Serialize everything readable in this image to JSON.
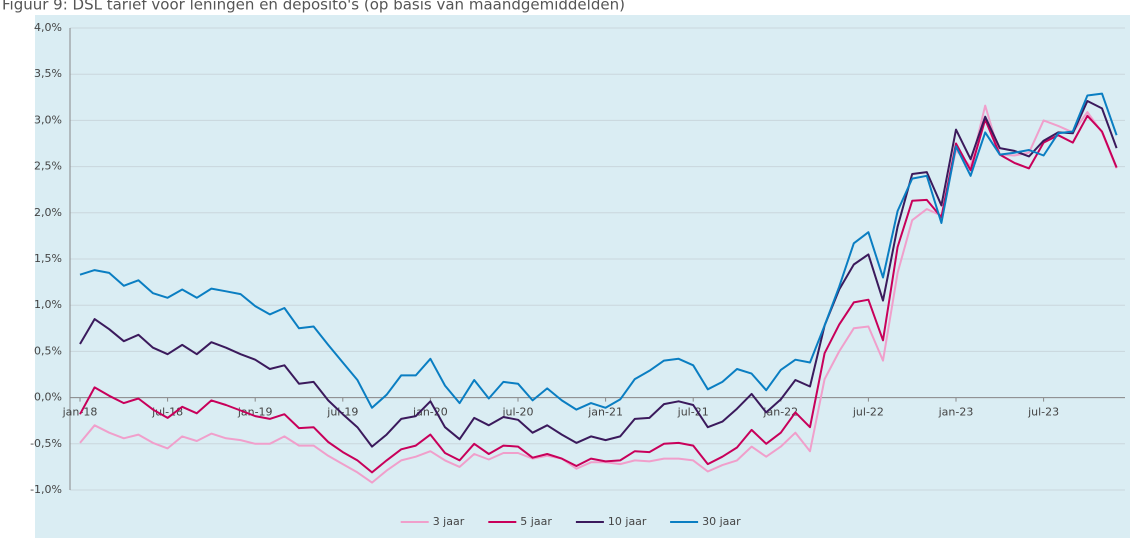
{
  "chart_data": {
    "type": "line",
    "title": "Figuur 9: DSL tarief voor leningen en deposito's (op basis van maandgemiddelden)",
    "categories": [
      "jan-18",
      null,
      null,
      null,
      null,
      null,
      "jul-18",
      null,
      null,
      null,
      null,
      null,
      "jan-19",
      null,
      null,
      null,
      null,
      null,
      "jul-19",
      null,
      null,
      null,
      null,
      null,
      "jan-20",
      null,
      null,
      null,
      null,
      null,
      "jul-20",
      null,
      null,
      null,
      null,
      null,
      "jan-21",
      null,
      null,
      null,
      null,
      null,
      "jul-21",
      null,
      null,
      null,
      null,
      null,
      "jan-22",
      null,
      null,
      null,
      null,
      null,
      "jul-22",
      null,
      null,
      null,
      null,
      null,
      "jan-23",
      null,
      null,
      null,
      null,
      null,
      "jul-23",
      null,
      null,
      null,
      null,
      null
    ],
    "series": [
      {
        "name": "3 jaar",
        "color": "#f09fcb",
        "values": [
          -0.49,
          -0.3,
          -0.38,
          -0.44,
          -0.4,
          -0.49,
          -0.55,
          -0.42,
          -0.47,
          -0.39,
          -0.44,
          -0.46,
          -0.5,
          -0.5,
          -0.42,
          -0.52,
          -0.52,
          -0.63,
          -0.72,
          -0.81,
          -0.92,
          -0.79,
          -0.68,
          -0.64,
          -0.58,
          -0.68,
          -0.75,
          -0.61,
          -0.67,
          -0.6,
          -0.6,
          -0.66,
          -0.63,
          -0.66,
          -0.77,
          -0.7,
          -0.7,
          -0.72,
          -0.68,
          -0.69,
          -0.66,
          -0.66,
          -0.68,
          -0.8,
          -0.73,
          -0.68,
          -0.53,
          -0.64,
          -0.53,
          -0.38,
          -0.58,
          0.2,
          0.5,
          0.75,
          0.77,
          0.4,
          1.35,
          1.92,
          2.04,
          1.97,
          2.68,
          2.5,
          3.16,
          2.63,
          2.62,
          2.65,
          3.0,
          2.94,
          2.87,
          3.09,
          2.87,
          2.48
        ]
      },
      {
        "name": "5 jaar",
        "color": "#c8005a",
        "values": [
          -0.18,
          0.11,
          0.02,
          -0.06,
          -0.01,
          -0.13,
          -0.22,
          -0.1,
          -0.17,
          -0.03,
          -0.08,
          -0.14,
          -0.2,
          -0.23,
          -0.18,
          -0.33,
          -0.32,
          -0.48,
          -0.59,
          -0.68,
          -0.81,
          -0.68,
          -0.56,
          -0.52,
          -0.4,
          -0.6,
          -0.68,
          -0.5,
          -0.61,
          -0.52,
          -0.53,
          -0.65,
          -0.61,
          -0.66,
          -0.74,
          -0.66,
          -0.69,
          -0.68,
          -0.58,
          -0.59,
          -0.5,
          -0.49,
          -0.52,
          -0.72,
          -0.64,
          -0.54,
          -0.35,
          -0.5,
          -0.38,
          -0.16,
          -0.32,
          0.48,
          0.79,
          1.03,
          1.06,
          0.62,
          1.63,
          2.13,
          2.14,
          1.95,
          2.75,
          2.46,
          3.01,
          2.63,
          2.54,
          2.48,
          2.76,
          2.84,
          2.76,
          3.05,
          2.88,
          2.49
        ]
      },
      {
        "name": "10 jaar",
        "color": "#3b1a5c",
        "values": [
          0.58,
          0.85,
          0.74,
          0.61,
          0.68,
          0.54,
          0.47,
          0.57,
          0.47,
          0.6,
          0.54,
          0.47,
          0.41,
          0.31,
          0.35,
          0.15,
          0.17,
          -0.03,
          -0.18,
          -0.32,
          -0.53,
          -0.4,
          -0.23,
          -0.2,
          -0.04,
          -0.32,
          -0.45,
          -0.22,
          -0.3,
          -0.21,
          -0.24,
          -0.38,
          -0.3,
          -0.4,
          -0.49,
          -0.42,
          -0.46,
          -0.42,
          -0.23,
          -0.22,
          -0.07,
          -0.04,
          -0.08,
          -0.32,
          -0.26,
          -0.12,
          0.04,
          -0.16,
          -0.02,
          0.19,
          0.12,
          0.78,
          1.17,
          1.44,
          1.55,
          1.05,
          1.85,
          2.42,
          2.44,
          2.08,
          2.9,
          2.58,
          3.04,
          2.7,
          2.67,
          2.61,
          2.78,
          2.87,
          2.86,
          3.21,
          3.13,
          2.7
        ]
      },
      {
        "name": "30 jaar",
        "color": "#0a7ec2",
        "values": [
          1.33,
          1.38,
          1.35,
          1.21,
          1.27,
          1.13,
          1.08,
          1.17,
          1.08,
          1.18,
          1.15,
          1.12,
          0.99,
          0.9,
          0.97,
          0.75,
          0.77,
          0.57,
          0.38,
          0.19,
          -0.11,
          0.03,
          0.24,
          0.24,
          0.42,
          0.13,
          -0.06,
          0.19,
          -0.01,
          0.17,
          0.15,
          -0.03,
          0.1,
          -0.03,
          -0.13,
          -0.06,
          -0.11,
          -0.02,
          0.2,
          0.29,
          0.4,
          0.42,
          0.35,
          0.09,
          0.17,
          0.31,
          0.26,
          0.08,
          0.3,
          0.41,
          0.38,
          0.78,
          1.2,
          1.67,
          1.79,
          1.3,
          2.02,
          2.37,
          2.4,
          1.89,
          2.72,
          2.4,
          2.87,
          2.63,
          2.65,
          2.68,
          2.62,
          2.86,
          2.88,
          3.27,
          3.29,
          2.84
        ]
      }
    ],
    "ylim": [
      -1,
      4
    ],
    "yticks": [
      {
        "value": -1,
        "label": "-1,0%"
      },
      {
        "value": -0.5,
        "label": "-0,5%"
      },
      {
        "value": 0,
        "label": "0,0%"
      },
      {
        "value": 0.5,
        "label": "0,5%"
      },
      {
        "value": 1,
        "label": "1,0%"
      },
      {
        "value": 1.5,
        "label": "1,5%"
      },
      {
        "value": 2,
        "label": "2,0%"
      },
      {
        "value": 2.5,
        "label": "2,5%"
      },
      {
        "value": 3,
        "label": "3,0%"
      },
      {
        "value": 3.5,
        "label": "3,5%"
      },
      {
        "value": 4,
        "label": "4,0%"
      }
    ],
    "grid": true,
    "legend": "bottom"
  }
}
